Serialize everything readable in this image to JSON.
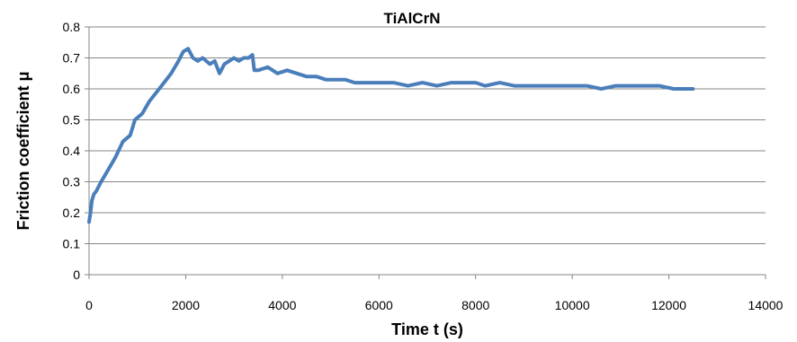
{
  "chart_data": {
    "type": "line",
    "title": "TiAlCrN",
    "xlabel": "Time t (s)",
    "ylabel": "Friction coefficient  μ",
    "xlim": [
      0,
      14000
    ],
    "ylim": [
      0,
      0.8
    ],
    "x_ticks": [
      "0",
      "2000",
      "4000",
      "6000",
      "8000",
      "10000",
      "12000",
      "14000"
    ],
    "y_ticks": [
      "0",
      "0.1",
      "0.2",
      "0.3",
      "0.4",
      "0.5",
      "0.6",
      "0.7",
      "0.8"
    ],
    "grid": "horizontal",
    "legend": "none",
    "series": [
      {
        "color": "#4a7ebb",
        "x": [
          0,
          30,
          60,
          100,
          150,
          250,
          400,
          550,
          700,
          850,
          950,
          1100,
          1250,
          1400,
          1550,
          1700,
          1850,
          1950,
          2050,
          2150,
          2250,
          2350,
          2500,
          2600,
          2700,
          2800,
          2900,
          3000,
          3100,
          3200,
          3300,
          3380,
          3420,
          3500,
          3700,
          3900,
          4100,
          4300,
          4500,
          4700,
          4900,
          5100,
          5300,
          5500,
          5700,
          6000,
          6300,
          6600,
          6900,
          7200,
          7500,
          7800,
          8000,
          8200,
          8500,
          8800,
          9100,
          9400,
          9700,
          10000,
          10300,
          10600,
          10900,
          11200,
          11500,
          11800,
          12100,
          12300,
          12500
        ],
        "y": [
          0.17,
          0.2,
          0.24,
          0.26,
          0.27,
          0.3,
          0.34,
          0.38,
          0.43,
          0.45,
          0.5,
          0.52,
          0.56,
          0.59,
          0.62,
          0.65,
          0.69,
          0.72,
          0.73,
          0.7,
          0.69,
          0.7,
          0.68,
          0.69,
          0.65,
          0.68,
          0.69,
          0.7,
          0.69,
          0.7,
          0.7,
          0.71,
          0.66,
          0.66,
          0.67,
          0.65,
          0.66,
          0.65,
          0.64,
          0.64,
          0.63,
          0.63,
          0.63,
          0.62,
          0.62,
          0.62,
          0.62,
          0.61,
          0.62,
          0.61,
          0.62,
          0.62,
          0.62,
          0.61,
          0.62,
          0.61,
          0.61,
          0.61,
          0.61,
          0.61,
          0.61,
          0.6,
          0.61,
          0.61,
          0.61,
          0.61,
          0.6,
          0.6,
          0.6
        ]
      }
    ]
  }
}
